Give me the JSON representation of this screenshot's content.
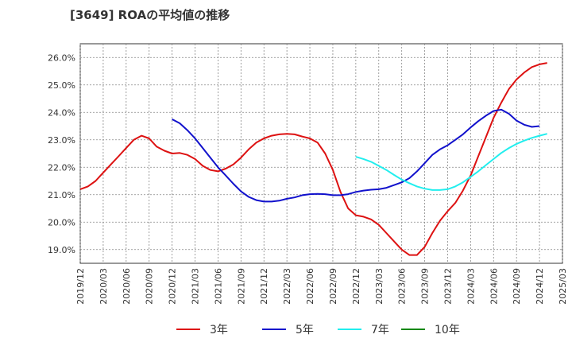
{
  "chart_data": {
    "type": "line",
    "title": "[3649]  ROAの平均値の推移",
    "xlabel": "",
    "ylabel": "",
    "x_ticks": [
      "2019/12",
      "2020/03",
      "2020/06",
      "2020/09",
      "2020/12",
      "2021/03",
      "2021/06",
      "2021/09",
      "2021/12",
      "2022/03",
      "2022/06",
      "2022/09",
      "2022/12",
      "2023/03",
      "2023/06",
      "2023/09",
      "2023/12",
      "2024/03",
      "2024/06",
      "2024/09",
      "2024/12",
      "2025/03"
    ],
    "y_ticks": [
      "19.0%",
      "20.0%",
      "21.0%",
      "22.0%",
      "23.0%",
      "24.0%",
      "25.0%",
      "26.0%"
    ],
    "ylim": [
      18.5,
      26.5
    ],
    "grid": true,
    "legend_position": "bottom",
    "series": [
      {
        "name": "3年",
        "color": "#dd1111",
        "points": [
          [
            "2019/12",
            21.2
          ],
          [
            "2020/01",
            21.3
          ],
          [
            "2020/02",
            21.5
          ],
          [
            "2020/03",
            21.8
          ],
          [
            "2020/04",
            22.1
          ],
          [
            "2020/05",
            22.4
          ],
          [
            "2020/06",
            22.7
          ],
          [
            "2020/07",
            23.0
          ],
          [
            "2020/08",
            23.15
          ],
          [
            "2020/09",
            23.05
          ],
          [
            "2020/10",
            22.75
          ],
          [
            "2020/11",
            22.6
          ],
          [
            "2020/12",
            22.5
          ],
          [
            "2021/01",
            22.52
          ],
          [
            "2021/02",
            22.45
          ],
          [
            "2021/03",
            22.3
          ],
          [
            "2021/04",
            22.05
          ],
          [
            "2021/05",
            21.9
          ],
          [
            "2021/06",
            21.85
          ],
          [
            "2021/07",
            21.95
          ],
          [
            "2021/08",
            22.1
          ],
          [
            "2021/09",
            22.35
          ],
          [
            "2021/10",
            22.65
          ],
          [
            "2021/11",
            22.9
          ],
          [
            "2021/12",
            23.05
          ],
          [
            "2022/01",
            23.15
          ],
          [
            "2022/02",
            23.2
          ],
          [
            "2022/03",
            23.22
          ],
          [
            "2022/04",
            23.2
          ],
          [
            "2022/05",
            23.12
          ],
          [
            "2022/06",
            23.05
          ],
          [
            "2022/07",
            22.9
          ],
          [
            "2022/08",
            22.5
          ],
          [
            "2022/09",
            21.9
          ],
          [
            "2022/10",
            21.1
          ],
          [
            "2022/11",
            20.5
          ],
          [
            "2022/12",
            20.25
          ],
          [
            "2023/01",
            20.2
          ],
          [
            "2023/02",
            20.1
          ],
          [
            "2023/03",
            19.9
          ],
          [
            "2023/04",
            19.6
          ],
          [
            "2023/05",
            19.3
          ],
          [
            "2023/06",
            19.0
          ],
          [
            "2023/07",
            18.8
          ],
          [
            "2023/08",
            18.8
          ],
          [
            "2023/09",
            19.1
          ],
          [
            "2023/10",
            19.6
          ],
          [
            "2023/11",
            20.05
          ],
          [
            "2023/12",
            20.4
          ],
          [
            "2024/01",
            20.7
          ],
          [
            "2024/02",
            21.15
          ],
          [
            "2024/03",
            21.7
          ],
          [
            "2024/04",
            22.4
          ],
          [
            "2024/05",
            23.1
          ],
          [
            "2024/06",
            23.8
          ],
          [
            "2024/07",
            24.35
          ],
          [
            "2024/08",
            24.85
          ],
          [
            "2024/09",
            25.2
          ],
          [
            "2024/10",
            25.45
          ],
          [
            "2024/11",
            25.65
          ],
          [
            "2024/12",
            25.75
          ],
          [
            "2025/01",
            25.8
          ]
        ]
      },
      {
        "name": "5年",
        "color": "#1111cc",
        "points": [
          [
            "2020/12",
            23.75
          ],
          [
            "2021/01",
            23.6
          ],
          [
            "2021/02",
            23.35
          ],
          [
            "2021/03",
            23.05
          ],
          [
            "2021/04",
            22.7
          ],
          [
            "2021/05",
            22.35
          ],
          [
            "2021/06",
            22.0
          ],
          [
            "2021/07",
            21.7
          ],
          [
            "2021/08",
            21.4
          ],
          [
            "2021/09",
            21.12
          ],
          [
            "2021/10",
            20.92
          ],
          [
            "2021/11",
            20.8
          ],
          [
            "2021/12",
            20.75
          ],
          [
            "2022/01",
            20.75
          ],
          [
            "2022/02",
            20.78
          ],
          [
            "2022/03",
            20.85
          ],
          [
            "2022/04",
            20.9
          ],
          [
            "2022/05",
            20.98
          ],
          [
            "2022/06",
            21.02
          ],
          [
            "2022/07",
            21.03
          ],
          [
            "2022/08",
            21.02
          ],
          [
            "2022/09",
            20.98
          ],
          [
            "2022/10",
            20.98
          ],
          [
            "2022/11",
            21.02
          ],
          [
            "2022/12",
            21.1
          ],
          [
            "2023/01",
            21.15
          ],
          [
            "2023/02",
            21.18
          ],
          [
            "2023/03",
            21.2
          ],
          [
            "2023/04",
            21.25
          ],
          [
            "2023/05",
            21.35
          ],
          [
            "2023/06",
            21.45
          ],
          [
            "2023/07",
            21.6
          ],
          [
            "2023/08",
            21.85
          ],
          [
            "2023/09",
            22.15
          ],
          [
            "2023/10",
            22.45
          ],
          [
            "2023/11",
            22.65
          ],
          [
            "2023/12",
            22.8
          ],
          [
            "2024/01",
            23.0
          ],
          [
            "2024/02",
            23.2
          ],
          [
            "2024/03",
            23.45
          ],
          [
            "2024/04",
            23.68
          ],
          [
            "2024/05",
            23.88
          ],
          [
            "2024/06",
            24.05
          ],
          [
            "2024/07",
            24.1
          ],
          [
            "2024/08",
            23.95
          ],
          [
            "2024/09",
            23.7
          ],
          [
            "2024/10",
            23.55
          ],
          [
            "2024/11",
            23.47
          ],
          [
            "2024/12",
            23.5
          ]
        ]
      },
      {
        "name": "7年",
        "color": "#22eeee",
        "points": [
          [
            "2022/12",
            22.38
          ],
          [
            "2023/01",
            22.3
          ],
          [
            "2023/02",
            22.2
          ],
          [
            "2023/03",
            22.05
          ],
          [
            "2023/04",
            21.9
          ],
          [
            "2023/05",
            21.72
          ],
          [
            "2023/06",
            21.55
          ],
          [
            "2023/07",
            21.42
          ],
          [
            "2023/08",
            21.3
          ],
          [
            "2023/09",
            21.22
          ],
          [
            "2023/10",
            21.17
          ],
          [
            "2023/11",
            21.17
          ],
          [
            "2023/12",
            21.2
          ],
          [
            "2024/01",
            21.3
          ],
          [
            "2024/02",
            21.45
          ],
          [
            "2024/03",
            21.65
          ],
          [
            "2024/04",
            21.85
          ],
          [
            "2024/05",
            22.08
          ],
          [
            "2024/06",
            22.3
          ],
          [
            "2024/07",
            22.52
          ],
          [
            "2024/08",
            22.7
          ],
          [
            "2024/09",
            22.85
          ],
          [
            "2024/10",
            22.97
          ],
          [
            "2024/11",
            23.07
          ],
          [
            "2024/12",
            23.15
          ],
          [
            "2025/01",
            23.22
          ]
        ]
      },
      {
        "name": "10年",
        "color": "#118811",
        "points": []
      }
    ]
  }
}
